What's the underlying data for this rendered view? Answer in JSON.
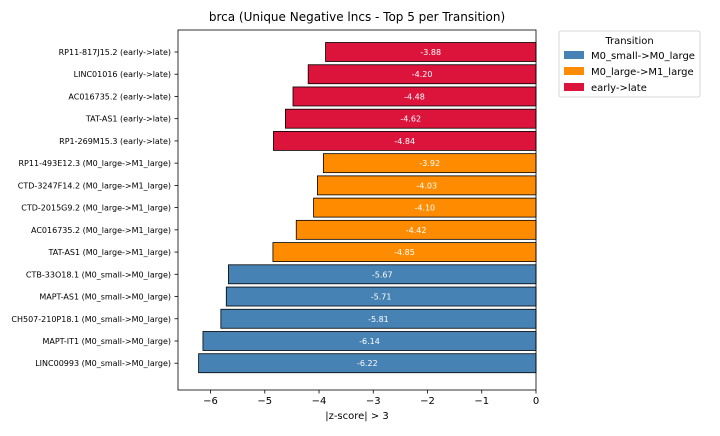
{
  "chart_data": {
    "type": "bar",
    "orientation": "horizontal",
    "title": "brca (Unique Negative lncs - Top 5 per Transition)",
    "xlabel": "|z-score| > 3",
    "ylabel": "",
    "xlim": [
      -6.6,
      0
    ],
    "xticks": [
      -6,
      -5,
      -4,
      -3,
      -2,
      -1,
      0
    ],
    "xtick_labels": [
      "−6",
      "−5",
      "−4",
      "−3",
      "−2",
      "−1",
      "0"
    ],
    "grid": false,
    "legend": {
      "title": "Transition",
      "placement": "upper-right-outside",
      "entries": [
        {
          "name": "M0_small->M0_large",
          "color": "#4682b4"
        },
        {
          "name": "M0_large->M1_large",
          "color": "#ff8c00"
        },
        {
          "name": "early->late",
          "color": "#dc143c"
        }
      ]
    },
    "bars": [
      {
        "label": "RP11-817J15.2 (early->late)",
        "value": -3.88,
        "value_label": "-3.88",
        "group": "early->late"
      },
      {
        "label": "LINC01016 (early->late)",
        "value": -4.2,
        "value_label": "-4.20",
        "group": "early->late"
      },
      {
        "label": "AC016735.2 (early->late)",
        "value": -4.48,
        "value_label": "-4.48",
        "group": "early->late"
      },
      {
        "label": "TAT-AS1 (early->late)",
        "value": -4.62,
        "value_label": "-4.62",
        "group": "early->late"
      },
      {
        "label": "RP1-269M15.3 (early->late)",
        "value": -4.84,
        "value_label": "-4.84",
        "group": "early->late"
      },
      {
        "label": "RP11-493E12.3 (M0_large->M1_large)",
        "value": -3.92,
        "value_label": "-3.92",
        "group": "M0_large->M1_large"
      },
      {
        "label": "CTD-3247F14.2 (M0_large->M1_large)",
        "value": -4.03,
        "value_label": "-4.03",
        "group": "M0_large->M1_large"
      },
      {
        "label": "CTD-2015G9.2 (M0_large->M1_large)",
        "value": -4.1,
        "value_label": "-4.10",
        "group": "M0_large->M1_large"
      },
      {
        "label": "AC016735.2 (M0_large->M1_large)",
        "value": -4.42,
        "value_label": "-4.42",
        "group": "M0_large->M1_large"
      },
      {
        "label": "TAT-AS1 (M0_large->M1_large)",
        "value": -4.85,
        "value_label": "-4.85",
        "group": "M0_large->M1_large"
      },
      {
        "label": "CTB-33O18.1 (M0_small->M0_large)",
        "value": -5.67,
        "value_label": "-5.67",
        "group": "M0_small->M0_large"
      },
      {
        "label": "MAPT-AS1 (M0_small->M0_large)",
        "value": -5.71,
        "value_label": "-5.71",
        "group": "M0_small->M0_large"
      },
      {
        "label": "CH507-210P18.1 (M0_small->M0_large)",
        "value": -5.81,
        "value_label": "-5.81",
        "group": "M0_small->M0_large"
      },
      {
        "label": "MAPT-IT1 (M0_small->M0_large)",
        "value": -6.14,
        "value_label": "-6.14",
        "group": "M0_small->M0_large"
      },
      {
        "label": "LINC00993 (M0_small->M0_large)",
        "value": -6.22,
        "value_label": "-6.22",
        "group": "M0_small->M0_large"
      }
    ]
  }
}
